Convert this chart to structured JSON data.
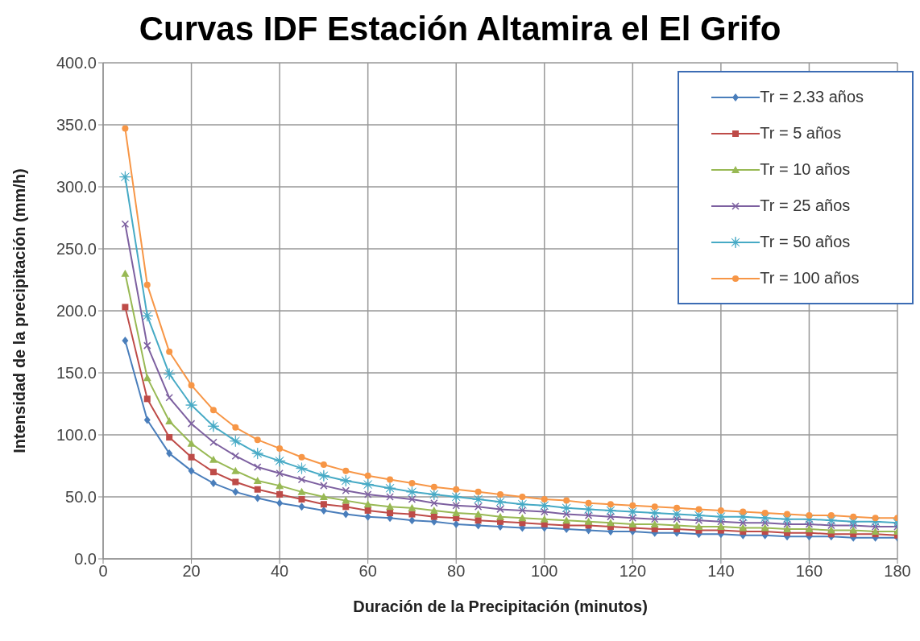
{
  "chart_data": {
    "type": "line",
    "title": "Curvas IDF Estación Altamira el El Grifo",
    "xlabel": "Duración de la Precipitación (minutos)",
    "ylabel": "Intensidad de la precipitación (mm/h)",
    "x": [
      5,
      10,
      15,
      20,
      25,
      30,
      35,
      40,
      45,
      50,
      55,
      60,
      65,
      70,
      75,
      80,
      85,
      90,
      95,
      100,
      105,
      110,
      115,
      120,
      125,
      130,
      135,
      140,
      145,
      150,
      155,
      160,
      165,
      170,
      175,
      180
    ],
    "series": [
      {
        "name": "Tr = 2.33 años",
        "color": "#4a7ebb",
        "marker": "diamond",
        "values": [
          176,
          112,
          85,
          71,
          61,
          54,
          49,
          45,
          42,
          39,
          36,
          34,
          33,
          31,
          30,
          28,
          27,
          26,
          25,
          25,
          24,
          23,
          22,
          22,
          21,
          21,
          20,
          20,
          19,
          19,
          18,
          18,
          18,
          17,
          17,
          17
        ]
      },
      {
        "name": "Tr = 5 años",
        "color": "#be4b48",
        "marker": "square",
        "values": [
          203,
          129,
          98,
          82,
          70,
          62,
          56,
          52,
          48,
          44,
          42,
          39,
          37,
          36,
          34,
          33,
          31,
          30,
          29,
          28,
          27,
          27,
          26,
          25,
          24,
          24,
          23,
          23,
          22,
          22,
          21,
          21,
          20,
          20,
          20,
          19
        ]
      },
      {
        "name": "Tr = 10 años",
        "color": "#98b954",
        "marker": "triangle",
        "values": [
          230,
          146,
          111,
          93,
          80,
          71,
          63,
          59,
          54,
          50,
          47,
          44,
          42,
          41,
          39,
          37,
          36,
          34,
          33,
          32,
          31,
          30,
          29,
          28,
          28,
          27,
          26,
          26,
          25,
          25,
          24,
          24,
          23,
          23,
          22,
          22
        ]
      },
      {
        "name": "Tr = 25 años",
        "color": "#7d60a0",
        "marker": "cross",
        "values": [
          270,
          172,
          130,
          109,
          94,
          83,
          74,
          69,
          64,
          59,
          55,
          52,
          50,
          48,
          45,
          43,
          42,
          40,
          39,
          38,
          36,
          35,
          34,
          33,
          32,
          32,
          31,
          30,
          29,
          29,
          28,
          28,
          27,
          27,
          26,
          26
        ]
      },
      {
        "name": "Tr = 50 años",
        "color": "#46aac5",
        "marker": "star",
        "values": [
          308,
          196,
          149,
          124,
          107,
          95,
          85,
          79,
          73,
          67,
          63,
          60,
          57,
          54,
          52,
          50,
          48,
          46,
          44,
          43,
          41,
          40,
          39,
          38,
          37,
          36,
          35,
          34,
          34,
          33,
          32,
          32,
          31,
          30,
          30,
          29
        ]
      },
      {
        "name": "Tr = 100 años",
        "color": "#f79646",
        "marker": "circle",
        "values": [
          347,
          221,
          167,
          140,
          120,
          106,
          96,
          89,
          82,
          76,
          71,
          67,
          64,
          61,
          58,
          56,
          54,
          52,
          50,
          48,
          47,
          45,
          44,
          43,
          42,
          41,
          40,
          39,
          38,
          37,
          36,
          35,
          35,
          34,
          33,
          33
        ]
      }
    ],
    "xlim": [
      0,
      180
    ],
    "xticks": [
      0,
      20,
      40,
      60,
      80,
      100,
      120,
      140,
      160,
      180
    ],
    "ylim": [
      0,
      400
    ],
    "yticks": [
      {
        "value": 0,
        "label": "0.0"
      },
      {
        "value": 50,
        "label": "50.0"
      },
      {
        "value": 100,
        "label": "100.0"
      },
      {
        "value": 150,
        "label": "150.0"
      },
      {
        "value": 200,
        "label": "200.0"
      },
      {
        "value": 250,
        "label": "250.0"
      },
      {
        "value": 300,
        "label": "300.0"
      },
      {
        "value": 350,
        "label": "350.0"
      },
      {
        "value": 400,
        "label": "400.0"
      }
    ],
    "grid": true,
    "legend": "top right",
    "line_style": "solid"
  }
}
